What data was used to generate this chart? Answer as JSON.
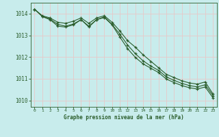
{
  "title": "Graphe pression niveau de la mer (hPa)",
  "bg_color": "#c8ecec",
  "grid_color": "#e8c8c8",
  "line_color": "#2a5c2a",
  "marker_color": "#2a5c2a",
  "xlim": [
    -0.5,
    23.5
  ],
  "ylim": [
    1009.7,
    1014.5
  ],
  "yticks": [
    1010,
    1011,
    1012,
    1013,
    1014
  ],
  "xticks": [
    0,
    1,
    2,
    3,
    4,
    5,
    6,
    7,
    8,
    9,
    10,
    11,
    12,
    13,
    14,
    15,
    16,
    17,
    18,
    19,
    20,
    21,
    22,
    23
  ],
  "series1": [
    1014.2,
    1013.9,
    1013.8,
    1013.6,
    1013.55,
    1013.65,
    1013.8,
    1013.55,
    1013.8,
    1013.9,
    1013.6,
    1013.2,
    1012.75,
    1012.45,
    1012.1,
    1011.8,
    1011.5,
    1011.2,
    1011.05,
    1010.9,
    1010.8,
    1010.75,
    1010.85,
    1010.3
  ],
  "series2": [
    1014.2,
    1013.88,
    1013.75,
    1013.5,
    1013.42,
    1013.52,
    1013.72,
    1013.42,
    1013.72,
    1013.85,
    1013.5,
    1013.05,
    1012.55,
    1012.15,
    1011.82,
    1011.58,
    1011.38,
    1011.08,
    1010.92,
    1010.78,
    1010.68,
    1010.62,
    1010.72,
    1010.22
  ],
  "series3": [
    1014.2,
    1013.86,
    1013.72,
    1013.42,
    1013.38,
    1013.48,
    1013.72,
    1013.38,
    1013.72,
    1013.82,
    1013.48,
    1012.92,
    1012.38,
    1011.98,
    1011.68,
    1011.48,
    1011.28,
    1010.98,
    1010.82,
    1010.68,
    1010.58,
    1010.52,
    1010.62,
    1010.12
  ]
}
